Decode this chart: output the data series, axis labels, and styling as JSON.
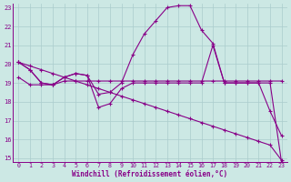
{
  "xlabel": "Windchill (Refroidissement éolien,°C)",
  "bg_color": "#cce8e4",
  "line_color": "#880088",
  "grid_color": "#aacccc",
  "xmin": 0,
  "xmax": 23,
  "ymin": 15,
  "ymax": 23,
  "yticks": [
    15,
    16,
    17,
    18,
    19,
    20,
    21,
    22,
    23
  ],
  "xticks": [
    0,
    1,
    2,
    3,
    4,
    5,
    6,
    7,
    8,
    9,
    10,
    11,
    12,
    13,
    14,
    15,
    16,
    17,
    18,
    19,
    20,
    21,
    22,
    23
  ],
  "series": [
    {
      "x": [
        0,
        1,
        2,
        3,
        4,
        5,
        6,
        7,
        8,
        9,
        10,
        11,
        12,
        13,
        14,
        15,
        16,
        17,
        18,
        19,
        20,
        21,
        22,
        23
      ],
      "y": [
        20.1,
        19.7,
        19.0,
        18.9,
        19.3,
        19.5,
        19.4,
        18.4,
        18.5,
        19.0,
        20.5,
        21.6,
        22.3,
        23.0,
        23.1,
        23.1,
        21.8,
        21.1,
        19.0,
        19.0,
        19.0,
        19.0,
        19.0,
        14.8
      ]
    },
    {
      "x": [
        0,
        1,
        2,
        3,
        4,
        5,
        6,
        7,
        8,
        9,
        10,
        11,
        12,
        13,
        14,
        15,
        16,
        17,
        18,
        19,
        20,
        21,
        22,
        23
      ],
      "y": [
        19.3,
        18.9,
        18.9,
        18.9,
        19.1,
        19.1,
        19.1,
        19.1,
        19.1,
        19.1,
        19.1,
        19.1,
        19.1,
        19.1,
        19.1,
        19.1,
        19.1,
        19.1,
        19.1,
        19.1,
        19.1,
        19.1,
        19.1,
        19.1
      ]
    },
    {
      "x": [
        0,
        1,
        2,
        3,
        4,
        5,
        6,
        7,
        8,
        9,
        10,
        11,
        12,
        13,
        14,
        15,
        16,
        17,
        18,
        19,
        20,
        21,
        22,
        23
      ],
      "y": [
        20.1,
        19.9,
        19.7,
        19.5,
        19.3,
        19.1,
        18.9,
        18.7,
        18.5,
        18.3,
        18.1,
        17.9,
        17.7,
        17.5,
        17.3,
        17.1,
        16.9,
        16.7,
        16.5,
        16.3,
        16.1,
        15.9,
        15.7,
        14.9
      ]
    },
    {
      "x": [
        0,
        1,
        2,
        3,
        4,
        5,
        6,
        7,
        8,
        9,
        10,
        11,
        12,
        13,
        14,
        15,
        16,
        17,
        18,
        19,
        20,
        21,
        22,
        23
      ],
      "y": [
        20.1,
        19.7,
        19.0,
        18.9,
        19.3,
        19.5,
        19.4,
        17.7,
        17.9,
        18.7,
        19.0,
        19.0,
        19.0,
        19.0,
        19.0,
        19.0,
        19.0,
        21.0,
        19.0,
        19.0,
        19.0,
        19.0,
        17.5,
        16.2
      ]
    }
  ]
}
